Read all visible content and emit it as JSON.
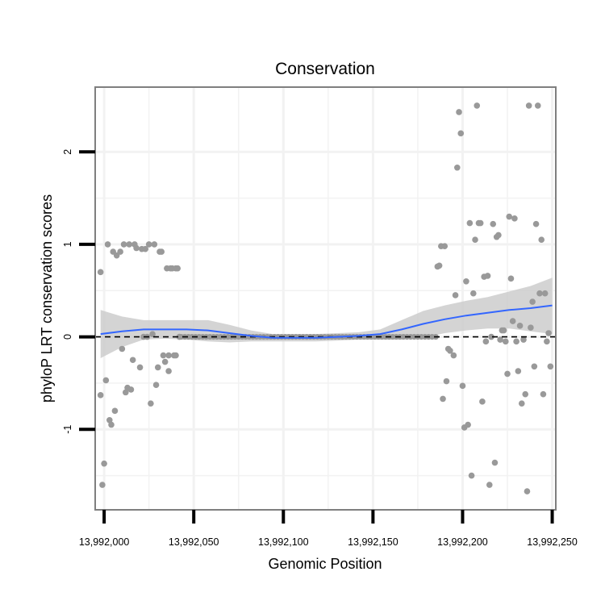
{
  "chart_data": {
    "type": "scatter",
    "title": "Conservation",
    "xlabel": "Genomic Position",
    "ylabel": "phyloP LRT conservation scores",
    "xlim": [
      13991995,
      13992252
    ],
    "ylim": [
      -1.87,
      2.7
    ],
    "x_ticks": [
      13992000,
      13992050,
      13992100,
      13992150,
      13992200,
      13992250
    ],
    "x_tick_labels": [
      "13,992,000",
      "13,992,050",
      "13,992,100",
      "13,992,150",
      "13,992,200",
      "13,992,250"
    ],
    "y_ticks": [
      -1,
      0,
      1,
      2
    ],
    "y_tick_labels": [
      "-1",
      "0",
      "1",
      "2"
    ],
    "grid": true,
    "reference_line": {
      "y": 0,
      "style": "dashed",
      "color": "#000000"
    },
    "points": [
      [
        13991998,
        0.7
      ],
      [
        13991998,
        -0.63
      ],
      [
        13991999,
        -1.6
      ],
      [
        13992000,
        -1.37
      ],
      [
        13992001,
        -0.47
      ],
      [
        13992002,
        1.0
      ],
      [
        13992003,
        -0.9
      ],
      [
        13992004,
        -0.95
      ],
      [
        13992005,
        0.92
      ],
      [
        13992006,
        -0.8
      ],
      [
        13992007,
        0.88
      ],
      [
        13992009,
        0.92
      ],
      [
        13992010,
        -0.13
      ],
      [
        13992011,
        1.0
      ],
      [
        13992012,
        -0.6
      ],
      [
        13992013,
        -0.55
      ],
      [
        13992014,
        1.0
      ],
      [
        13992015,
        -0.57
      ],
      [
        13992016,
        -0.25
      ],
      [
        13992017,
        1.0
      ],
      [
        13992018,
        0.96
      ],
      [
        13992020,
        -0.33
      ],
      [
        13992021,
        0.95
      ],
      [
        13992022,
        0.0
      ],
      [
        13992023,
        0.95
      ],
      [
        13992024,
        0.0
      ],
      [
        13992025,
        1.0
      ],
      [
        13992026,
        -0.72
      ],
      [
        13992027,
        0.03
      ],
      [
        13992028,
        1.0
      ],
      [
        13992029,
        -0.52
      ],
      [
        13992030,
        -0.33
      ],
      [
        13992031,
        0.92
      ],
      [
        13992032,
        0.92
      ],
      [
        13992033,
        -0.2
      ],
      [
        13992034,
        -0.27
      ],
      [
        13992035,
        0.74
      ],
      [
        13992036,
        -0.37
      ],
      [
        13992036,
        -0.2
      ],
      [
        13992037,
        0.74
      ],
      [
        13992038,
        0.74
      ],
      [
        13992039,
        -0.2
      ],
      [
        13992040,
        0.74
      ],
      [
        13992040,
        -0.2
      ],
      [
        13992041,
        0.74
      ],
      [
        13992042,
        0.0
      ],
      [
        13992186,
        0.76
      ],
      [
        13992187,
        0.77
      ],
      [
        13992188,
        0.98
      ],
      [
        13992189,
        -0.67
      ],
      [
        13992190,
        0.98
      ],
      [
        13992191,
        -0.48
      ],
      [
        13992192,
        -0.13
      ],
      [
        13992193,
        -0.15
      ],
      [
        13992195,
        -0.2
      ],
      [
        13992196,
        0.45
      ],
      [
        13992197,
        1.83
      ],
      [
        13992198,
        2.43
      ],
      [
        13992199,
        2.2
      ],
      [
        13992200,
        -0.53
      ],
      [
        13992201,
        -0.98
      ],
      [
        13992202,
        0.6
      ],
      [
        13992203,
        -0.95
      ],
      [
        13992204,
        1.23
      ],
      [
        13992205,
        -1.5
      ],
      [
        13992206,
        0.47
      ],
      [
        13992207,
        1.05
      ],
      [
        13992208,
        2.5
      ],
      [
        13992209,
        1.23
      ],
      [
        13992210,
        1.23
      ],
      [
        13992211,
        -0.7
      ],
      [
        13992212,
        0.65
      ],
      [
        13992213,
        -0.05
      ],
      [
        13992214,
        0.66
      ],
      [
        13992215,
        -1.6
      ],
      [
        13992216,
        0.0
      ],
      [
        13992217,
        1.22
      ],
      [
        13992218,
        -1.36
      ],
      [
        13992219,
        1.08
      ],
      [
        13992220,
        1.1
      ],
      [
        13992221,
        -0.03
      ],
      [
        13992222,
        0.07
      ],
      [
        13992223,
        0.07
      ],
      [
        13992224,
        -0.05
      ],
      [
        13992225,
        -0.4
      ],
      [
        13992226,
        1.3
      ],
      [
        13992227,
        0.63
      ],
      [
        13992228,
        0.17
      ],
      [
        13992229,
        1.28
      ],
      [
        13992230,
        -0.05
      ],
      [
        13992231,
        -0.37
      ],
      [
        13992232,
        0.12
      ],
      [
        13992233,
        -0.72
      ],
      [
        13992234,
        -0.03
      ],
      [
        13992235,
        -0.62
      ],
      [
        13992236,
        -1.67
      ],
      [
        13992237,
        2.5
      ],
      [
        13992238,
        0.1
      ],
      [
        13992239,
        0.38
      ],
      [
        13992240,
        -0.32
      ],
      [
        13992241,
        1.22
      ],
      [
        13992242,
        2.5
      ],
      [
        13992243,
        0.47
      ],
      [
        13992244,
        1.05
      ],
      [
        13992245,
        -0.62
      ],
      [
        13992246,
        0.47
      ],
      [
        13992247,
        -0.05
      ],
      [
        13992248,
        0.04
      ],
      [
        13992249,
        -0.32
      ]
    ],
    "flat_points": {
      "x_start": 13992043,
      "x_end": 13992185,
      "step": 2,
      "y": 0
    },
    "smooth": {
      "method": "loess",
      "color": "#3366ff",
      "x": [
        13991998,
        13992010,
        13992022,
        13992034,
        13992046,
        13992058,
        13992070,
        13992082,
        13992094,
        13992106,
        13992118,
        13992130,
        13992142,
        13992154,
        13992166,
        13992178,
        13992190,
        13992202,
        13992214,
        13992226,
        13992238,
        13992250
      ],
      "y": [
        0.03,
        0.06,
        0.08,
        0.08,
        0.08,
        0.07,
        0.04,
        0.01,
        -0.01,
        -0.01,
        -0.01,
        0.0,
        0.01,
        0.03,
        0.08,
        0.14,
        0.19,
        0.23,
        0.26,
        0.29,
        0.31,
        0.34
      ],
      "ci_low": [
        -0.23,
        -0.11,
        -0.03,
        -0.02,
        -0.03,
        -0.05,
        -0.06,
        -0.05,
        -0.05,
        -0.05,
        -0.05,
        -0.04,
        -0.03,
        -0.03,
        -0.03,
        -0.01,
        0.04,
        0.07,
        0.09,
        0.09,
        0.06,
        0.03
      ],
      "ci_high": [
        0.29,
        0.22,
        0.18,
        0.18,
        0.18,
        0.18,
        0.13,
        0.07,
        0.03,
        0.03,
        0.03,
        0.04,
        0.05,
        0.08,
        0.18,
        0.28,
        0.34,
        0.39,
        0.43,
        0.49,
        0.55,
        0.64
      ]
    },
    "colors": {
      "point": "#999999",
      "ci_band": "#cccccc",
      "panel_border": "#7f7f7f",
      "grid": "#f2f2f2",
      "tick": "#000000"
    }
  }
}
